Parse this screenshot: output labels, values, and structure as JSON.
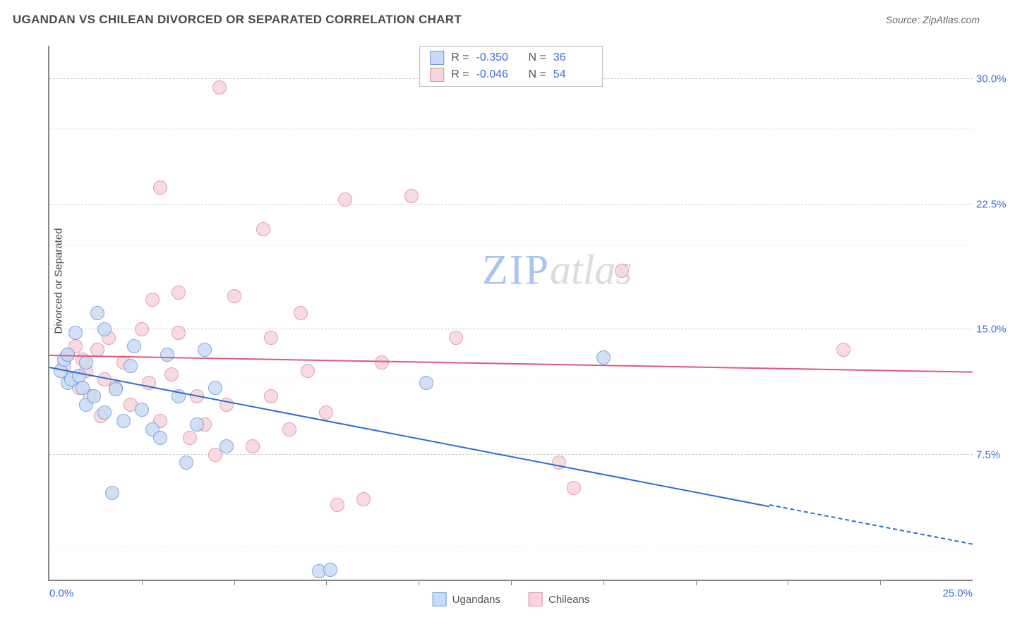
{
  "title": "UGANDAN VS CHILEAN DIVORCED OR SEPARATED CORRELATION CHART",
  "source": "Source: ZipAtlas.com",
  "watermark": {
    "part1": "ZIP",
    "part2": "atlas"
  },
  "y_axis_label": "Divorced or Separated",
  "xlim": [
    0,
    25
  ],
  "ylim": [
    0,
    32
  ],
  "x_tick_labels": {
    "0": "0.0%",
    "25": "25.0%"
  },
  "y_ticks": [
    7.5,
    15.0,
    22.5,
    30.0
  ],
  "y_tick_labels": [
    "7.5%",
    "15.0%",
    "22.5%",
    "30.0%"
  ],
  "x_minor_ticks": [
    2.5,
    5,
    7.5,
    10,
    12.5,
    15,
    17.5,
    20,
    22.5
  ],
  "y_minor_grids": [
    2,
    12,
    20,
    27
  ],
  "series": {
    "ugandans": {
      "label": "Ugandans",
      "fill": "#c9dbf4",
      "stroke": "#6a9bdc",
      "r": 10,
      "R": "-0.350",
      "N": "36",
      "trend": {
        "y0": 12.7,
        "y1": 2.0,
        "color": "#2d6cd2",
        "solid_until": 0.78
      },
      "points": [
        [
          0.3,
          12.5
        ],
        [
          0.4,
          13.2
        ],
        [
          0.5,
          11.8
        ],
        [
          0.5,
          13.5
        ],
        [
          0.6,
          12.0
        ],
        [
          0.7,
          14.8
        ],
        [
          0.8,
          12.2
        ],
        [
          0.9,
          11.5
        ],
        [
          1.0,
          13.0
        ],
        [
          1.0,
          10.5
        ],
        [
          1.2,
          11.0
        ],
        [
          1.3,
          16.0
        ],
        [
          1.5,
          10.0
        ],
        [
          1.5,
          15.0
        ],
        [
          1.7,
          5.2
        ],
        [
          1.8,
          11.4
        ],
        [
          2.0,
          9.5
        ],
        [
          2.2,
          12.8
        ],
        [
          2.3,
          14.0
        ],
        [
          2.5,
          10.2
        ],
        [
          2.8,
          9.0
        ],
        [
          3.0,
          8.5
        ],
        [
          3.2,
          13.5
        ],
        [
          3.5,
          11.0
        ],
        [
          3.7,
          7.0
        ],
        [
          4.0,
          9.3
        ],
        [
          4.2,
          13.8
        ],
        [
          4.5,
          11.5
        ],
        [
          4.8,
          8.0
        ],
        [
          7.3,
          0.5
        ],
        [
          7.6,
          0.6
        ],
        [
          10.2,
          11.8
        ],
        [
          15.0,
          13.3
        ]
      ]
    },
    "chileans": {
      "label": "Chileans",
      "fill": "#f7d5de",
      "stroke": "#e28ba4",
      "r": 10,
      "R": "-0.046",
      "N": "54",
      "trend": {
        "y0": 13.4,
        "y1": 12.4,
        "color": "#e3567f",
        "solid_until": 1.0
      },
      "points": [
        [
          0.4,
          12.8
        ],
        [
          0.5,
          13.5
        ],
        [
          0.6,
          12.0
        ],
        [
          0.7,
          14.0
        ],
        [
          0.8,
          11.5
        ],
        [
          0.9,
          13.2
        ],
        [
          1.0,
          12.5
        ],
        [
          1.1,
          11.0
        ],
        [
          1.3,
          13.8
        ],
        [
          1.4,
          9.8
        ],
        [
          1.5,
          12.0
        ],
        [
          1.6,
          14.5
        ],
        [
          1.8,
          11.5
        ],
        [
          2.0,
          13.0
        ],
        [
          2.2,
          10.5
        ],
        [
          2.5,
          15.0
        ],
        [
          2.7,
          11.8
        ],
        [
          2.8,
          16.8
        ],
        [
          3.0,
          9.5
        ],
        [
          3.0,
          23.5
        ],
        [
          3.3,
          12.3
        ],
        [
          3.5,
          14.8
        ],
        [
          3.5,
          17.2
        ],
        [
          3.8,
          8.5
        ],
        [
          4.0,
          11.0
        ],
        [
          4.2,
          9.3
        ],
        [
          4.5,
          7.5
        ],
        [
          4.6,
          29.5
        ],
        [
          4.8,
          10.5
        ],
        [
          5.0,
          17.0
        ],
        [
          5.5,
          8.0
        ],
        [
          5.8,
          21.0
        ],
        [
          6.0,
          14.5
        ],
        [
          6.0,
          11.0
        ],
        [
          6.5,
          9.0
        ],
        [
          6.8,
          16.0
        ],
        [
          7.0,
          12.5
        ],
        [
          7.5,
          10.0
        ],
        [
          7.8,
          4.5
        ],
        [
          8.0,
          22.8
        ],
        [
          8.5,
          4.8
        ],
        [
          9.0,
          13.0
        ],
        [
          9.8,
          23.0
        ],
        [
          11.0,
          14.5
        ],
        [
          13.8,
          7.0
        ],
        [
          14.2,
          5.5
        ],
        [
          15.5,
          18.5
        ],
        [
          21.5,
          13.8
        ]
      ]
    }
  }
}
